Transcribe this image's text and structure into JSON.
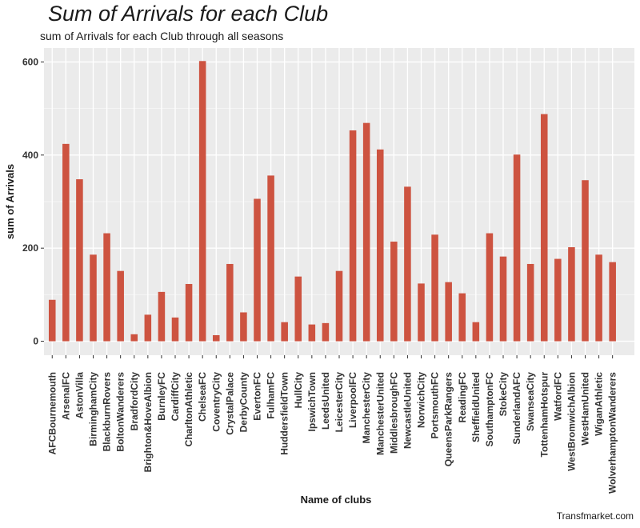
{
  "chart_data": {
    "type": "bar",
    "title": "Sum of Arrivals for each Club",
    "subtitle": "sum of Arrivals for each Club through all seasons",
    "xlabel": "Name of clubs",
    "ylabel": "sum of Arrivals",
    "caption": "Transfmarket.com",
    "ylim": [
      -30,
      630
    ],
    "yticks": [
      0,
      200,
      400,
      600
    ],
    "grid": true,
    "bar_color": "#cd5340",
    "panel_color": "#ebebeb",
    "categories": [
      "AFCBournemouth",
      "ArsenalFC",
      "AstonVilla",
      "BirminghamCity",
      "BlackburnRovers",
      "BoltonWanderers",
      "BradfordCity",
      "Brighton&HoveAlbion",
      "BurnleyFC",
      "CardiffCity",
      "CharltonAthletic",
      "ChelseaFC",
      "CoventryCity",
      "CrystalPalace",
      "DerbyCounty",
      "EvertonFC",
      "FulhamFC",
      "HuddersfieldTown",
      "HullCity",
      "IpswichTown",
      "LeedsUnited",
      "LeicesterCity",
      "LiverpoolFC",
      "ManchesterCity",
      "ManchesterUnited",
      "MiddlesbroughFC",
      "NewcastleUnited",
      "NorwichCity",
      "PortsmouthFC",
      "QueensParkRangers",
      "ReadingFC",
      "SheffieldUnited",
      "SouthamptonFC",
      "StokeCity",
      "SunderlandAFC",
      "SwanseaCity",
      "TottenhamHotspur",
      "WatfordFC",
      "WestBromwichAlbion",
      "WestHamUnited",
      "WiganAthletic",
      "WolverhamptonWanderers"
    ],
    "values": [
      89,
      424,
      348,
      186,
      232,
      151,
      15,
      57,
      106,
      51,
      123,
      602,
      13,
      166,
      62,
      306,
      356,
      41,
      139,
      36,
      39,
      151,
      453,
      469,
      412,
      214,
      332,
      124,
      229,
      127,
      103,
      41,
      232,
      182,
      401,
      166,
      488,
      177,
      202,
      346,
      186,
      170
    ]
  }
}
